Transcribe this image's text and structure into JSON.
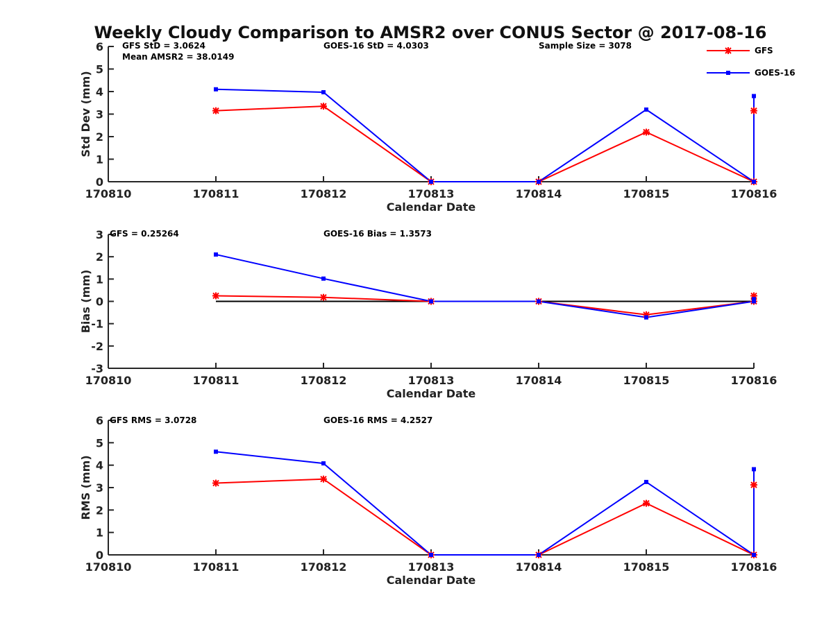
{
  "chart_data": {
    "title": "Weekly Cloudy Comparison to AMSR2 over CONUS Sector @ 2017-08-16",
    "legend": {
      "placement": "top-right",
      "entries": [
        {
          "name": "GFS",
          "color": "#ff0000",
          "marker": "asterisk"
        },
        {
          "name": "GOES-16",
          "color": "#0000ff",
          "marker": "square"
        }
      ]
    },
    "panels": [
      {
        "type": "line",
        "xlabel": "Calendar Date",
        "ylabel": "Std Dev (mm)",
        "x_ticks": [
          "170810",
          "170811",
          "170812",
          "170813",
          "170814",
          "170815",
          "170816"
        ],
        "xlim": [
          170810,
          170816
        ],
        "ylim": [
          0,
          6
        ],
        "y_ticks": [
          "0",
          "1",
          "2",
          "3",
          "4",
          "5",
          "6"
        ],
        "annotations": [
          "GFS StD = 3.0624",
          "Mean AMSR2 = 38.0149",
          "GOES-16 StD = 4.0303",
          "Sample Size = 3078"
        ],
        "series": [
          {
            "name": "GFS",
            "color": "#ff0000",
            "x": [
              170811,
              170812,
              170813,
              170814,
              170815,
              170816,
              170816
            ],
            "y": [
              3.15,
              3.35,
              0.0,
              0.0,
              2.2,
              0.0,
              3.15
            ]
          },
          {
            "name": "GOES-16",
            "color": "#0000ff",
            "x": [
              170811,
              170812,
              170813,
              170814,
              170815,
              170816,
              170816
            ],
            "y": [
              4.1,
              3.97,
              0.0,
              0.0,
              3.2,
              0.0,
              3.8
            ]
          }
        ],
        "zero_line": false
      },
      {
        "type": "line",
        "xlabel": "Calendar Date",
        "ylabel": "Bias (mm)",
        "x_ticks": [
          "170810",
          "170811",
          "170812",
          "170813",
          "170814",
          "170815",
          "170816"
        ],
        "xlim": [
          170810,
          170816
        ],
        "ylim": [
          -3,
          3
        ],
        "y_ticks": [
          "-3",
          "-2",
          "-1",
          "0",
          "1",
          "2",
          "3"
        ],
        "annotations": [
          "GFS = 0.25264",
          "GOES-16 Bias  = 1.3573"
        ],
        "series": [
          {
            "name": "GFS",
            "color": "#ff0000",
            "x": [
              170811,
              170812,
              170813,
              170814,
              170815,
              170816,
              170816
            ],
            "y": [
              0.25,
              0.18,
              0.0,
              0.0,
              -0.6,
              0.0,
              0.25
            ]
          },
          {
            "name": "GOES-16",
            "color": "#0000ff",
            "x": [
              170811,
              170812,
              170813,
              170814,
              170815,
              170816,
              170816
            ],
            "y": [
              2.1,
              1.02,
              0.0,
              0.0,
              -0.72,
              0.0,
              0.1
            ]
          }
        ],
        "zero_line": true
      },
      {
        "type": "line",
        "xlabel": "Calendar Date",
        "ylabel": "RMS (mm)",
        "x_ticks": [
          "170810",
          "170811",
          "170812",
          "170813",
          "170814",
          "170815",
          "170816"
        ],
        "xlim": [
          170810,
          170816
        ],
        "ylim": [
          0,
          6
        ],
        "y_ticks": [
          "0",
          "1",
          "2",
          "3",
          "4",
          "5",
          "6"
        ],
        "annotations": [
          "GFS RMS = 3.0728",
          "GOES-16 RMS = 4.2527"
        ],
        "series": [
          {
            "name": "GFS",
            "color": "#ff0000",
            "x": [
              170811,
              170812,
              170813,
              170814,
              170815,
              170816,
              170816
            ],
            "y": [
              3.2,
              3.38,
              0.0,
              0.0,
              2.3,
              0.0,
              3.12
            ]
          },
          {
            "name": "GOES-16",
            "color": "#0000ff",
            "x": [
              170811,
              170812,
              170813,
              170814,
              170815,
              170816,
              170816
            ],
            "y": [
              4.6,
              4.08,
              0.0,
              0.0,
              3.25,
              0.0,
              3.82
            ]
          }
        ],
        "zero_line": false
      }
    ]
  }
}
